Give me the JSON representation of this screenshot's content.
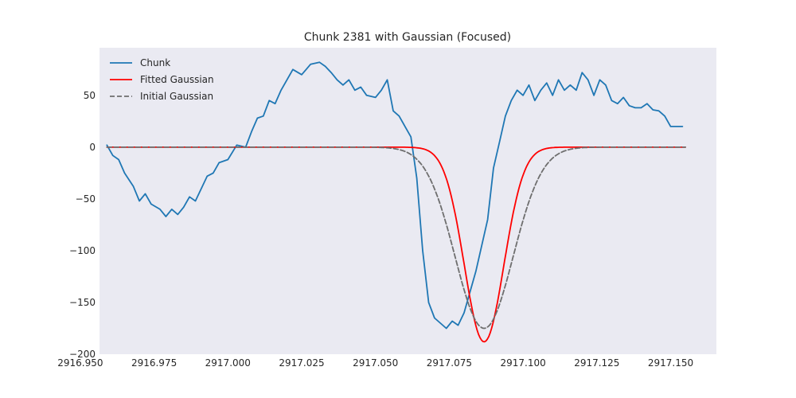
{
  "chart_data": {
    "type": "line",
    "title": "Chunk 2381 with Gaussian (Focused)",
    "xlabel": "",
    "ylabel": "",
    "xlim": [
      2916.9565,
      2917.1655
    ],
    "ylim": [
      -200,
      96
    ],
    "xticks": [
      2916.95,
      2916.975,
      2917.0,
      2917.025,
      2917.05,
      2917.075,
      2917.1,
      2917.125,
      2917.15
    ],
    "xtick_labels": [
      "2916.950",
      "2916.975",
      "2917.000",
      "2917.025",
      "2917.050",
      "2917.075",
      "2917.100",
      "2917.125",
      "2917.150"
    ],
    "yticks": [
      50,
      0,
      -50,
      -100,
      -150,
      -200
    ],
    "ytick_labels": [
      "50",
      "0",
      "−50",
      "−100",
      "−150",
      "−200"
    ],
    "grid": false,
    "background": "#eaeaf2",
    "legend_position": "top-left",
    "series": [
      {
        "name": "Chunk",
        "color": "#1f77b4",
        "style": "solid",
        "x": [
          2916.959,
          2916.961,
          2916.963,
          2916.965,
          2916.968,
          2916.97,
          2916.972,
          2916.974,
          2916.977,
          2916.979,
          2916.981,
          2916.983,
          2916.985,
          2916.987,
          2916.989,
          2916.991,
          2916.993,
          2916.995,
          2916.997,
          2917.0,
          2917.003,
          2917.006,
          2917.008,
          2917.01,
          2917.012,
          2917.014,
          2917.016,
          2917.018,
          2917.02,
          2917.022,
          2917.025,
          2917.028,
          2917.031,
          2917.033,
          2917.035,
          2917.037,
          2917.039,
          2917.041,
          2917.043,
          2917.045,
          2917.047,
          2917.05,
          2917.052,
          2917.054,
          2917.056,
          2917.058,
          2917.06,
          2917.062,
          2917.064,
          2917.066,
          2917.068,
          2917.07,
          2917.072,
          2917.074,
          2917.076,
          2917.078,
          2917.08,
          2917.082,
          2917.084,
          2917.086,
          2917.088,
          2917.09,
          2917.092,
          2917.094,
          2917.096,
          2917.098,
          2917.1,
          2917.102,
          2917.104,
          2917.106,
          2917.108,
          2917.11,
          2917.112,
          2917.114,
          2917.116,
          2917.118,
          2917.12,
          2917.122,
          2917.124,
          2917.126,
          2917.128,
          2917.13,
          2917.132,
          2917.134,
          2917.136,
          2917.138,
          2917.14,
          2917.142,
          2917.144,
          2917.146,
          2917.148,
          2917.15,
          2917.152,
          2917.154
        ],
        "y": [
          2,
          -8,
          -12,
          -25,
          -38,
          -52,
          -45,
          -55,
          -60,
          -67,
          -60,
          -65,
          -58,
          -48,
          -52,
          -40,
          -28,
          -25,
          -15,
          -12,
          2,
          0,
          15,
          28,
          30,
          45,
          42,
          55,
          65,
          75,
          70,
          80,
          82,
          78,
          72,
          65,
          60,
          65,
          55,
          58,
          50,
          48,
          55,
          65,
          35,
          30,
          20,
          10,
          -30,
          -100,
          -150,
          -165,
          -170,
          -175,
          -168,
          -172,
          -160,
          -140,
          -120,
          -95,
          -70,
          -20,
          5,
          30,
          45,
          55,
          50,
          60,
          45,
          55,
          62,
          50,
          65,
          55,
          60,
          55,
          72,
          65,
          50,
          65,
          60,
          45,
          42,
          48,
          40,
          38,
          38,
          42,
          36,
          35,
          30,
          20,
          20,
          20
        ]
      },
      {
        "name": "Fitted Gaussian",
        "color": "#ff0000",
        "style": "solid",
        "gaussian": {
          "amplitude": -188,
          "center": 2917.0868,
          "sigma": 0.0067
        },
        "x_range": [
          2916.959,
          2917.155
        ]
      },
      {
        "name": "Initial Gaussian",
        "color": "#6e6e6e",
        "style": "dashed",
        "gaussian": {
          "amplitude": -175,
          "center": 2917.0868,
          "sigma": 0.0098
        },
        "x_range": [
          2916.959,
          2917.155
        ]
      }
    ]
  }
}
